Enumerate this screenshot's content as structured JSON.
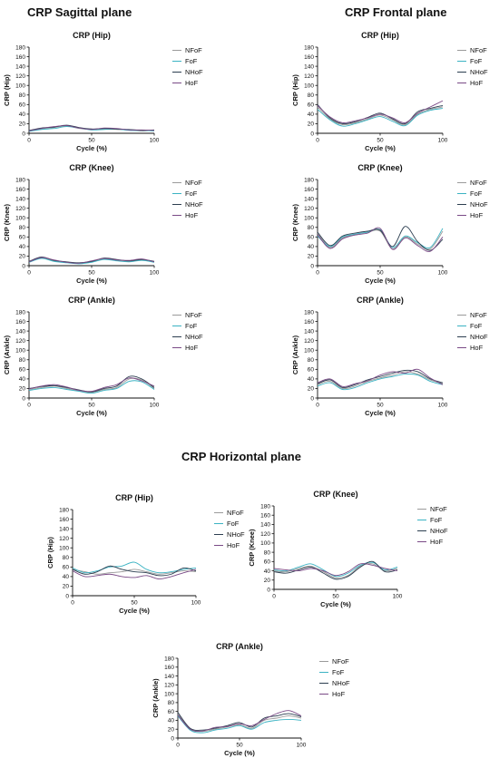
{
  "sections": {
    "sagittal": "CRP Sagittal plane",
    "frontal": "CRP Frontal plane",
    "horizontal": "CRP Horizontal plane"
  },
  "colors": {
    "NFoF": "#9a9a9a",
    "FoF": "#3bb3c3",
    "NHoF": "#2c3e50",
    "HoF": "#7a4a86"
  },
  "chart_data": [
    {
      "type": "line",
      "id": "sag-hip",
      "section": "CRP Sagittal plane",
      "title": "CRP (Hip)",
      "xlabel": "Cycle (%)",
      "ylabel": "CRP (Hip)",
      "xlim": [
        0,
        100
      ],
      "ylim": [
        0,
        180
      ],
      "xticks": [
        0,
        50,
        100
      ],
      "yticks": [
        0,
        20,
        40,
        60,
        80,
        100,
        120,
        140,
        160,
        180
      ],
      "legend": "right",
      "grid": false,
      "x": [
        0,
        10,
        20,
        30,
        40,
        50,
        60,
        70,
        80,
        90,
        100
      ],
      "series": [
        {
          "name": "NFoF",
          "values": [
            5,
            9,
            12,
            15,
            10,
            8,
            9,
            8,
            7,
            5,
            6
          ]
        },
        {
          "name": "FoF",
          "values": [
            4,
            8,
            10,
            14,
            11,
            7,
            8,
            9,
            6,
            6,
            5
          ]
        },
        {
          "name": "NHoF",
          "values": [
            6,
            11,
            13,
            17,
            12,
            9,
            10,
            9,
            8,
            6,
            7
          ]
        },
        {
          "name": "HoF",
          "values": [
            5,
            10,
            14,
            16,
            11,
            8,
            11,
            10,
            7,
            7,
            6
          ]
        }
      ]
    },
    {
      "type": "line",
      "id": "fro-hip",
      "section": "CRP Frontal plane",
      "title": "CRP (Hip)",
      "xlabel": "Cycle (%)",
      "ylabel": "CRP (Hip)",
      "xlim": [
        0,
        100
      ],
      "ylim": [
        0,
        180
      ],
      "xticks": [
        0,
        50,
        100
      ],
      "yticks": [
        0,
        20,
        40,
        60,
        80,
        100,
        120,
        140,
        160,
        180
      ],
      "legend": "right",
      "grid": false,
      "x": [
        0,
        10,
        20,
        30,
        40,
        50,
        60,
        70,
        80,
        90,
        100
      ],
      "series": [
        {
          "name": "NFoF",
          "values": [
            55,
            30,
            18,
            22,
            30,
            38,
            28,
            18,
            40,
            50,
            55
          ]
        },
        {
          "name": "FoF",
          "values": [
            50,
            28,
            15,
            20,
            28,
            35,
            25,
            16,
            38,
            48,
            52
          ]
        },
        {
          "name": "NHoF",
          "values": [
            60,
            32,
            20,
            24,
            33,
            42,
            30,
            20,
            45,
            52,
            58
          ]
        },
        {
          "name": "HoF",
          "values": [
            58,
            34,
            22,
            26,
            32,
            40,
            32,
            22,
            42,
            55,
            68
          ]
        }
      ]
    },
    {
      "type": "line",
      "id": "sag-knee",
      "section": "CRP Sagittal plane",
      "title": "CRP (Knee)",
      "xlabel": "Cycle (%)",
      "ylabel": "CRP (Knee)",
      "xlim": [
        0,
        100
      ],
      "ylim": [
        0,
        180
      ],
      "xticks": [
        0,
        50,
        100
      ],
      "yticks": [
        0,
        20,
        40,
        60,
        80,
        100,
        120,
        140,
        160,
        180
      ],
      "legend": "right",
      "grid": false,
      "x": [
        0,
        10,
        20,
        30,
        40,
        50,
        60,
        70,
        80,
        90,
        100
      ],
      "series": [
        {
          "name": "NFoF",
          "values": [
            8,
            16,
            10,
            7,
            5,
            8,
            14,
            11,
            9,
            12,
            8
          ]
        },
        {
          "name": "FoF",
          "values": [
            7,
            15,
            9,
            6,
            4,
            7,
            13,
            10,
            8,
            11,
            7
          ]
        },
        {
          "name": "NHoF",
          "values": [
            9,
            18,
            11,
            8,
            6,
            9,
            16,
            13,
            10,
            13,
            9
          ]
        },
        {
          "name": "HoF",
          "values": [
            8,
            17,
            12,
            7,
            5,
            10,
            15,
            12,
            11,
            14,
            8
          ]
        }
      ]
    },
    {
      "type": "line",
      "id": "fro-knee",
      "section": "CRP Frontal plane",
      "title": "CRP (Knee)",
      "xlabel": "Cycle (%)",
      "ylabel": "CRP (Knee)",
      "xlim": [
        0,
        100
      ],
      "ylim": [
        0,
        180
      ],
      "xticks": [
        0,
        50,
        100
      ],
      "yticks": [
        0,
        20,
        40,
        60,
        80,
        100,
        120,
        140,
        160,
        180
      ],
      "legend": "right",
      "grid": false,
      "x": [
        0,
        10,
        20,
        30,
        40,
        50,
        60,
        70,
        80,
        90,
        100
      ],
      "series": [
        {
          "name": "NFoF",
          "values": [
            68,
            38,
            58,
            65,
            70,
            72,
            35,
            60,
            45,
            35,
            72
          ]
        },
        {
          "name": "FoF",
          "values": [
            62,
            40,
            60,
            66,
            70,
            75,
            38,
            62,
            48,
            38,
            78
          ]
        },
        {
          "name": "NHoF",
          "values": [
            70,
            42,
            62,
            68,
            72,
            74,
            40,
            82,
            50,
            32,
            55
          ]
        },
        {
          "name": "HoF",
          "values": [
            65,
            36,
            56,
            64,
            68,
            78,
            34,
            58,
            42,
            30,
            60
          ]
        }
      ]
    },
    {
      "type": "line",
      "id": "sag-ankle",
      "section": "CRP Sagittal plane",
      "title": "CRP (Ankle)",
      "xlabel": "Cycle (%)",
      "ylabel": "CRP (Ankle)",
      "xlim": [
        0,
        100
      ],
      "ylim": [
        0,
        180
      ],
      "xticks": [
        0,
        50,
        100
      ],
      "yticks": [
        0,
        20,
        40,
        60,
        80,
        100,
        120,
        140,
        160,
        180
      ],
      "legend": "right",
      "grid": false,
      "x": [
        0,
        10,
        20,
        30,
        40,
        50,
        60,
        70,
        80,
        90,
        100
      ],
      "series": [
        {
          "name": "NFoF",
          "values": [
            18,
            22,
            25,
            20,
            15,
            12,
            18,
            22,
            40,
            38,
            20
          ]
        },
        {
          "name": "FoF",
          "values": [
            16,
            20,
            22,
            18,
            14,
            10,
            16,
            20,
            35,
            34,
            18
          ]
        },
        {
          "name": "NHoF",
          "values": [
            20,
            24,
            26,
            22,
            17,
            13,
            20,
            25,
            45,
            40,
            22
          ]
        },
        {
          "name": "HoF",
          "values": [
            19,
            25,
            28,
            23,
            16,
            14,
            22,
            28,
            42,
            36,
            25
          ]
        }
      ]
    },
    {
      "type": "line",
      "id": "fro-ankle",
      "section": "CRP Frontal plane",
      "title": "CRP (Ankle)",
      "xlabel": "Cycle (%)",
      "ylabel": "CRP (Ankle)",
      "xlim": [
        0,
        100
      ],
      "ylim": [
        0,
        180
      ],
      "xticks": [
        0,
        50,
        100
      ],
      "yticks": [
        0,
        20,
        40,
        60,
        80,
        100,
        120,
        140,
        160,
        180
      ],
      "legend": "right",
      "grid": false,
      "x": [
        0,
        10,
        20,
        30,
        40,
        50,
        60,
        70,
        80,
        90,
        100
      ],
      "series": [
        {
          "name": "NFoF",
          "values": [
            28,
            35,
            20,
            25,
            35,
            42,
            48,
            55,
            50,
            38,
            30
          ]
        },
        {
          "name": "FoF",
          "values": [
            25,
            32,
            18,
            22,
            32,
            40,
            45,
            50,
            48,
            35,
            28
          ]
        },
        {
          "name": "NHoF",
          "values": [
            30,
            38,
            22,
            28,
            38,
            45,
            52,
            58,
            55,
            40,
            32
          ]
        },
        {
          "name": "HoF",
          "values": [
            32,
            40,
            24,
            30,
            36,
            48,
            55,
            52,
            60,
            42,
            28
          ]
        }
      ]
    },
    {
      "type": "line",
      "id": "hor-hip",
      "section": "CRP Horizontal plane",
      "title": "CRP (Hip)",
      "xlabel": "Cycle (%)",
      "ylabel": "CRP (Hip)",
      "xlim": [
        0,
        100
      ],
      "ylim": [
        0,
        180
      ],
      "xticks": [
        0,
        50,
        100
      ],
      "yticks": [
        0,
        20,
        40,
        60,
        80,
        100,
        120,
        140,
        160,
        180
      ],
      "legend": "right",
      "grid": false,
      "x": [
        0,
        10,
        20,
        30,
        40,
        50,
        60,
        70,
        80,
        90,
        100
      ],
      "series": [
        {
          "name": "NFoF",
          "values": [
            55,
            50,
            45,
            48,
            50,
            55,
            50,
            45,
            48,
            52,
            50
          ]
        },
        {
          "name": "FoF",
          "values": [
            58,
            48,
            52,
            60,
            62,
            70,
            55,
            48,
            50,
            55,
            58
          ]
        },
        {
          "name": "NHoF",
          "values": [
            55,
            45,
            50,
            62,
            55,
            50,
            48,
            42,
            45,
            58,
            52
          ]
        },
        {
          "name": "HoF",
          "values": [
            52,
            40,
            42,
            45,
            40,
            38,
            42,
            35,
            40,
            48,
            55
          ]
        }
      ]
    },
    {
      "type": "line",
      "id": "hor-knee",
      "section": "CRP Horizontal plane",
      "title": "CRP (Knee)",
      "xlabel": "Cycle (%)",
      "ylabel": "CRP (Knee)",
      "xlim": [
        0,
        100
      ],
      "ylim": [
        0,
        180
      ],
      "xticks": [
        0,
        50,
        100
      ],
      "yticks": [
        0,
        20,
        40,
        60,
        80,
        100,
        120,
        140,
        160,
        180
      ],
      "legend": "right",
      "grid": false,
      "x": [
        0,
        10,
        20,
        30,
        40,
        50,
        60,
        70,
        80,
        90,
        100
      ],
      "series": [
        {
          "name": "NFoF",
          "values": [
            40,
            38,
            45,
            50,
            38,
            25,
            30,
            50,
            55,
            40,
            45
          ]
        },
        {
          "name": "FoF",
          "values": [
            42,
            40,
            48,
            55,
            42,
            28,
            35,
            52,
            58,
            42,
            48
          ]
        },
        {
          "name": "NHoF",
          "values": [
            38,
            35,
            42,
            48,
            35,
            22,
            28,
            48,
            60,
            38,
            42
          ]
        },
        {
          "name": "HoF",
          "values": [
            45,
            42,
            40,
            45,
            40,
            30,
            38,
            55,
            52,
            45,
            40
          ]
        }
      ]
    },
    {
      "type": "line",
      "id": "hor-ankle",
      "section": "CRP Horizontal plane",
      "title": "CRP (Ankle)",
      "xlabel": "Cycle (%)",
      "ylabel": "CRP (Ankle)",
      "xlim": [
        0,
        100
      ],
      "ylim": [
        0,
        180
      ],
      "xticks": [
        0,
        50,
        100
      ],
      "yticks": [
        0,
        20,
        40,
        60,
        80,
        100,
        120,
        140,
        160,
        180
      ],
      "legend": "right",
      "grid": false,
      "x": [
        0,
        10,
        20,
        30,
        40,
        50,
        60,
        70,
        80,
        90,
        100
      ],
      "series": [
        {
          "name": "NFoF",
          "values": [
            55,
            20,
            15,
            20,
            25,
            30,
            22,
            40,
            45,
            50,
            45
          ]
        },
        {
          "name": "FoF",
          "values": [
            50,
            18,
            12,
            18,
            22,
            28,
            20,
            35,
            40,
            42,
            40
          ]
        },
        {
          "name": "NHoF",
          "values": [
            58,
            22,
            18,
            22,
            28,
            35,
            25,
            45,
            50,
            55,
            48
          ]
        },
        {
          "name": "HoF",
          "values": [
            52,
            20,
            16,
            24,
            26,
            32,
            28,
            42,
            55,
            62,
            50
          ]
        }
      ]
    }
  ]
}
